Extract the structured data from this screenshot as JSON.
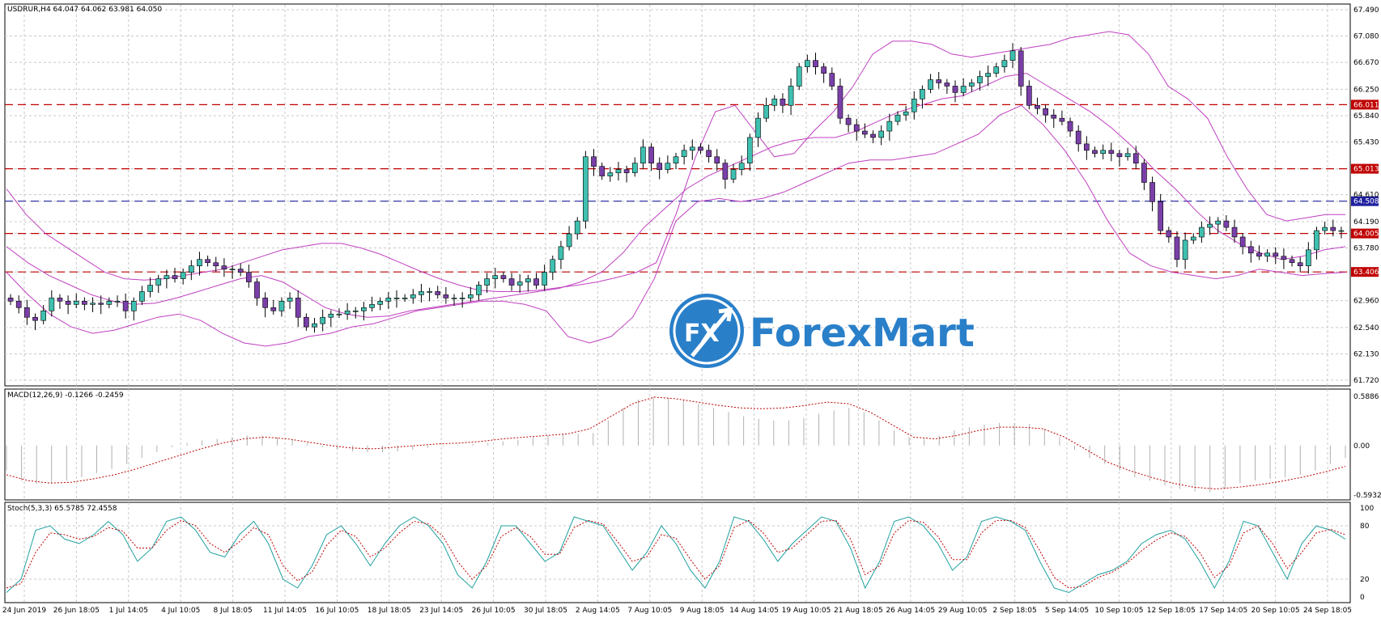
{
  "chart_data": {
    "type": "candlestick",
    "symbol_header": "USDRUR,H4  64.047 64.062 63.981 64.050",
    "x_ticks": [
      "24 Jun 2019",
      "26 Jun 18:05",
      "1 Jul 14:05",
      "4 Jul 10:05",
      "8 Jul 18:05",
      "11 Jul 14:05",
      "16 Jul 10:05",
      "18 Jul 18:05",
      "23 Jul 14:05",
      "26 Jul 10:05",
      "30 Jul 18:05",
      "2 Aug 14:05",
      "7 Aug 10:05",
      "9 Aug 18:05",
      "14 Aug 14:05",
      "19 Aug 10:05",
      "21 Aug 18:05",
      "26 Aug 14:05",
      "29 Aug 10:05",
      "2 Sep 18:05",
      "5 Sep 14:05",
      "10 Sep 10:05",
      "12 Sep 18:05",
      "17 Sep 14:05",
      "20 Sep 10:05",
      "24 Sep 18:05"
    ],
    "main": {
      "y_ticks": [
        "67.490",
        "67.080",
        "66.670",
        "66.250",
        "65.840",
        "65.430",
        "65.013",
        "64.610",
        "64.508",
        "64.190",
        "64.005",
        "63.780",
        "63.406",
        "62.960",
        "62.540",
        "62.130",
        "61.720"
      ],
      "ylim": [
        61.72,
        67.49
      ],
      "levels": [
        {
          "value": 66.011,
          "label": "66.011",
          "color": "#c00000"
        },
        {
          "value": 65.013,
          "label": "65.013",
          "color": "#c00000"
        },
        {
          "value": 64.508,
          "label": "64.508",
          "color": "#2020a0"
        },
        {
          "value": 64.005,
          "label": "64.005",
          "color": "#c00000"
        },
        {
          "value": 63.406,
          "label": "63.406",
          "color": "#c00000"
        }
      ],
      "closes": [
        62.95,
        62.85,
        62.7,
        62.65,
        62.8,
        63.0,
        62.95,
        62.9,
        62.95,
        62.9,
        62.92,
        62.9,
        62.95,
        62.95,
        62.8,
        62.95,
        63.1,
        63.2,
        63.3,
        63.35,
        63.3,
        63.4,
        63.5,
        63.6,
        63.55,
        63.5,
        63.45,
        63.45,
        63.4,
        63.25,
        63.0,
        62.85,
        62.8,
        62.95,
        63.0,
        62.7,
        62.55,
        62.6,
        62.7,
        62.75,
        62.75,
        62.8,
        62.8,
        62.85,
        62.9,
        62.95,
        63.0,
        63.0,
        63.0,
        63.05,
        63.1,
        63.1,
        63.05,
        63.0,
        63.0,
        63.0,
        63.05,
        63.2,
        63.3,
        63.35,
        63.3,
        63.2,
        63.25,
        63.3,
        63.2,
        63.4,
        63.6,
        63.8,
        64.0,
        64.2,
        65.2,
        65.05,
        64.9,
        64.95,
        65.0,
        64.95,
        65.1,
        65.35,
        65.1,
        65.0,
        65.1,
        65.2,
        65.3,
        65.35,
        65.3,
        65.2,
        65.1,
        64.85,
        65.0,
        65.1,
        65.5,
        65.8,
        66.0,
        66.1,
        66.0,
        66.3,
        66.6,
        66.7,
        66.6,
        66.5,
        66.3,
        65.8,
        65.7,
        65.6,
        65.55,
        65.5,
        65.6,
        65.75,
        65.85,
        65.9,
        66.1,
        66.25,
        66.4,
        66.35,
        66.3,
        66.2,
        66.3,
        66.35,
        66.45,
        66.5,
        66.6,
        66.7,
        66.85,
        66.3,
        66.0,
        65.95,
        65.85,
        65.8,
        65.75,
        65.6,
        65.4,
        65.3,
        65.25,
        65.3,
        65.25,
        65.2,
        65.25,
        65.1,
        64.8,
        64.5,
        64.05,
        63.95,
        63.6,
        63.9,
        63.95,
        64.1,
        64.15,
        64.2,
        64.1,
        63.95,
        63.8,
        63.7,
        63.65,
        63.7,
        63.65,
        63.6,
        63.55,
        63.5,
        63.75,
        64.05,
        64.1,
        64.05,
        64.05
      ],
      "bb_upper": [
        64.7,
        64.3,
        64.0,
        63.8,
        63.6,
        63.4,
        63.3,
        63.28,
        63.3,
        63.35,
        63.4,
        63.45,
        63.55,
        63.65,
        63.75,
        63.8,
        63.85,
        63.85,
        63.78,
        63.68,
        63.55,
        63.42,
        63.3,
        63.2,
        63.12,
        63.1,
        63.1,
        63.12,
        63.16,
        63.2,
        63.25,
        63.32,
        63.4,
        63.55,
        64.3,
        65.2,
        65.9,
        66.0,
        65.6,
        65.2,
        65.25,
        65.6,
        65.9,
        66.3,
        66.8,
        67.0,
        67.0,
        66.95,
        66.8,
        66.75,
        66.8,
        66.85,
        66.9,
        66.95,
        67.05,
        67.1,
        67.15,
        67.1,
        66.8,
        66.3,
        66.1,
        65.8,
        65.2,
        64.7,
        64.3,
        64.2,
        64.25,
        64.3,
        64.3
      ],
      "bb_lower": [
        63.4,
        63.05,
        62.75,
        62.55,
        62.45,
        62.5,
        62.6,
        62.7,
        62.75,
        62.65,
        62.45,
        62.3,
        62.25,
        62.3,
        62.4,
        62.45,
        62.55,
        62.6,
        62.7,
        62.8,
        62.85,
        62.9,
        62.95,
        62.95,
        62.9,
        62.8,
        62.4,
        62.3,
        62.4,
        62.7,
        63.3,
        64.2,
        64.5,
        64.55,
        64.5,
        64.55,
        64.65,
        64.8,
        64.95,
        65.1,
        65.15,
        65.15,
        65.2,
        65.25,
        65.4,
        65.55,
        65.85,
        66.0,
        65.7,
        65.3,
        64.8,
        64.2,
        63.7,
        63.5,
        63.4,
        63.35,
        63.3,
        63.35,
        63.45,
        63.4,
        63.35,
        63.38,
        63.4
      ],
      "bb_mid": [
        63.8,
        63.55,
        63.35,
        63.2,
        63.05,
        62.95,
        62.9,
        62.92,
        63.0,
        63.1,
        63.2,
        63.3,
        63.35,
        63.25,
        63.05,
        62.85,
        62.75,
        62.7,
        62.72,
        62.8,
        62.85,
        62.9,
        62.95,
        63.0,
        63.05,
        63.1,
        63.15,
        63.25,
        63.4,
        63.7,
        64.1,
        64.4,
        64.7,
        64.9,
        65.05,
        65.2,
        65.35,
        65.45,
        65.5,
        65.5,
        65.6,
        65.75,
        65.9,
        66.0,
        66.1,
        66.15,
        66.3,
        66.45,
        66.5,
        66.3,
        66.1,
        65.9,
        65.65,
        65.35,
        65.0,
        64.7,
        64.35,
        64.05,
        63.85,
        63.7,
        63.6,
        63.65,
        63.75,
        63.8
      ]
    },
    "macd": {
      "header": "MACD(12,26,9) -0.1266 -0.2459",
      "y_ticks": [
        "0.5886",
        "0.00",
        "-0.5932"
      ],
      "ylim": [
        -0.5932,
        0.5886
      ],
      "histogram": [
        -0.3,
        -0.42,
        -0.46,
        -0.45,
        -0.42,
        -0.38,
        -0.33,
        -0.28,
        -0.22,
        -0.15,
        -0.08,
        -0.02,
        0.03,
        0.06,
        0.08,
        0.1,
        0.12,
        0.12,
        0.1,
        0.07,
        0.03,
        -0.02,
        -0.05,
        -0.07,
        -0.08,
        -0.08,
        -0.07,
        -0.05,
        -0.03,
        -0.01,
        0.01,
        0.02,
        0.03,
        0.05,
        0.07,
        0.1,
        0.12,
        0.14,
        0.14,
        0.15,
        0.3,
        0.45,
        0.55,
        0.58,
        0.57,
        0.55,
        0.5,
        0.45,
        0.4,
        0.35,
        0.32,
        0.3,
        0.3,
        0.33,
        0.38,
        0.42,
        0.45,
        0.4,
        0.3,
        0.18,
        0.1,
        0.08,
        0.12,
        0.18,
        0.22,
        0.25,
        0.27,
        0.27,
        0.26,
        0.2,
        0.1,
        -0.05,
        -0.15,
        -0.22,
        -0.3,
        -0.38,
        -0.42,
        -0.48,
        -0.52,
        -0.55,
        -0.56,
        -0.52,
        -0.45,
        -0.42,
        -0.4,
        -0.38,
        -0.35,
        -0.3,
        -0.22,
        -0.15
      ],
      "signal": [
        -0.35,
        -0.42,
        -0.45,
        -0.44,
        -0.4,
        -0.35,
        -0.28,
        -0.2,
        -0.12,
        -0.04,
        0.03,
        0.08,
        0.1,
        0.08,
        0.04,
        0.0,
        -0.03,
        -0.04,
        -0.02,
        0.0,
        0.02,
        0.03,
        0.05,
        0.08,
        0.1,
        0.12,
        0.14,
        0.2,
        0.35,
        0.5,
        0.58,
        0.56,
        0.52,
        0.48,
        0.45,
        0.44,
        0.45,
        0.48,
        0.52,
        0.5,
        0.4,
        0.25,
        0.1,
        0.08,
        0.12,
        0.18,
        0.22,
        0.22,
        0.2,
        0.1,
        -0.05,
        -0.2,
        -0.3,
        -0.38,
        -0.45,
        -0.5,
        -0.52,
        -0.5,
        -0.47,
        -0.43,
        -0.38,
        -0.32,
        -0.25
      ]
    },
    "stoch": {
      "header": "Stoch(5,3,3) 65.5785 72.4558",
      "y_ticks": [
        "100",
        "80",
        "20",
        "0"
      ],
      "ylim": [
        0,
        100
      ],
      "main": [
        5,
        20,
        75,
        80,
        65,
        60,
        70,
        85,
        70,
        40,
        55,
        85,
        90,
        75,
        50,
        45,
        70,
        85,
        60,
        20,
        10,
        35,
        70,
        80,
        60,
        35,
        60,
        80,
        90,
        80,
        60,
        25,
        10,
        40,
        80,
        80,
        60,
        40,
        50,
        90,
        85,
        80,
        55,
        30,
        50,
        80,
        60,
        30,
        10,
        40,
        90,
        85,
        65,
        40,
        60,
        75,
        90,
        85,
        55,
        10,
        40,
        85,
        90,
        80,
        60,
        30,
        45,
        85,
        90,
        85,
        75,
        40,
        10,
        5,
        15,
        25,
        30,
        40,
        60,
        70,
        75,
        65,
        40,
        10,
        40,
        85,
        80,
        50,
        20,
        60,
        80,
        75,
        65
      ],
      "signal": [
        10,
        15,
        50,
        72,
        70,
        65,
        68,
        78,
        74,
        55,
        55,
        75,
        86,
        80,
        60,
        50,
        62,
        78,
        70,
        35,
        18,
        28,
        58,
        75,
        68,
        45,
        55,
        72,
        85,
        82,
        68,
        40,
        20,
        35,
        68,
        78,
        68,
        48,
        48,
        78,
        86,
        82,
        62,
        40,
        45,
        70,
        66,
        42,
        20,
        35,
        78,
        86,
        72,
        50,
        55,
        70,
        85,
        86,
        65,
        25,
        35,
        72,
        86,
        84,
        68,
        42,
        42,
        72,
        86,
        86,
        78,
        52,
        22,
        10,
        12,
        22,
        28,
        38,
        52,
        64,
        72,
        68,
        50,
        22,
        35,
        72,
        80,
        60,
        32,
        50,
        72,
        76,
        70
      ]
    }
  },
  "logo": {
    "badge": "FX",
    "name": "ForexMart"
  }
}
